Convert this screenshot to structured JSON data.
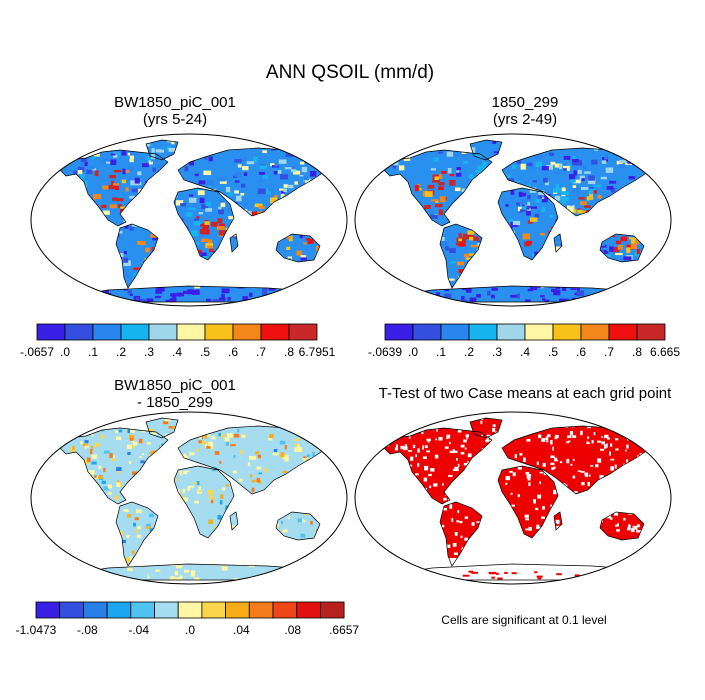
{
  "figure": {
    "title": "ANN QSOIL (mm/d)",
    "note": "Cells are significant at 0.1 level"
  },
  "colors": {
    "scale10": [
      "#3a1fe6",
      "#3350e0",
      "#2a86ee",
      "#17b5f0",
      "#9fd6ea",
      "#fff7a3",
      "#f8c21a",
      "#f4871a",
      "#f01010",
      "#c82828"
    ],
    "scale12": [
      "#3a1fe6",
      "#3350e0",
      "#2a7ee8",
      "#1aa6f0",
      "#50c2f0",
      "#a6dcf0",
      "#fff7a3",
      "#fbd64a",
      "#f8ad18",
      "#f47c1a",
      "#ee4616",
      "#e21010",
      "#b82020"
    ],
    "land_base": "#2a90f0",
    "ocean": "#ffffff",
    "signif": "#ee0000"
  },
  "panels": [
    {
      "id": "case",
      "line1": "BW1850_piC_001",
      "line2": "(yrs 5-24)",
      "labels": [
        "-.0657",
        ".0",
        ".1",
        ".2",
        ".3",
        ".4",
        ".5",
        ".6",
        ".7",
        ".8",
        "6.7951"
      ],
      "scale": "scale10"
    },
    {
      "id": "control",
      "line1": "1850_299",
      "line2": "(yrs 2-49)",
      "labels": [
        "-.0639",
        ".0",
        ".1",
        ".2",
        ".3",
        ".4",
        ".5",
        ".6",
        ".7",
        ".8",
        "6.665"
      ],
      "scale": "scale10"
    },
    {
      "id": "diff",
      "line1": "BW1850_piC_001",
      "line2": "- 1850_299",
      "labels": [
        "-1.0473",
        "-.08",
        "-.04",
        ".0",
        ".04",
        ".08",
        ".6657"
      ],
      "scale": "scale12"
    },
    {
      "id": "ttest",
      "line1": "T-Test of two Case means at each grid point",
      "line2": ""
    }
  ]
}
